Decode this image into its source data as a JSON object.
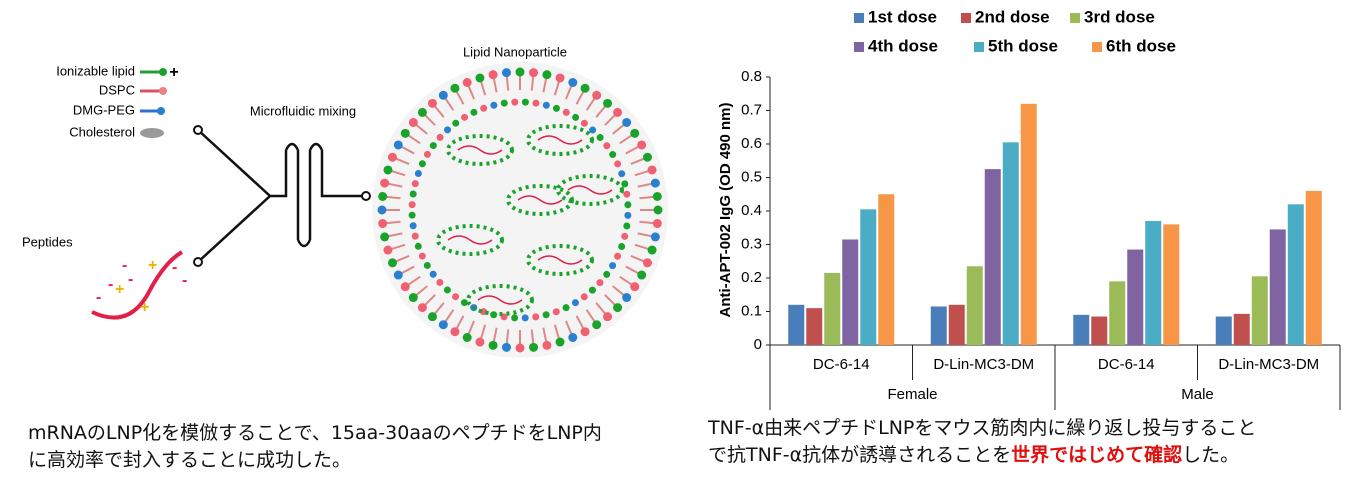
{
  "diagram": {
    "legend": [
      "Ionizable lipid",
      "DSPC",
      "DMG-PEG",
      "Cholesterol"
    ],
    "mixing_label": "Microfluidic mixing",
    "lnp_label": "Lipid Nanoparticle",
    "peptides_label": "Peptides",
    "plus": "+",
    "minus": "-"
  },
  "chart_data": {
    "type": "bar",
    "y_label": "Anti-APT-002  IgG (OD 490 nm)",
    "categories": [
      "DC-6-14",
      "D-Lin-MC3-DM",
      "DC-6-14",
      "D-Lin-MC3-DM"
    ],
    "group_labels": [
      "Female",
      "Male"
    ],
    "series": [
      {
        "name": "1st dose",
        "color": "#4a7ebb",
        "values": [
          0.12,
          0.115,
          0.09,
          0.085
        ]
      },
      {
        "name": "2nd dose",
        "color": "#c0504d",
        "values": [
          0.11,
          0.12,
          0.085,
          0.093
        ]
      },
      {
        "name": "3rd dose",
        "color": "#9bbb59",
        "values": [
          0.215,
          0.235,
          0.19,
          0.205
        ]
      },
      {
        "name": "4th dose",
        "color": "#8064a2",
        "values": [
          0.315,
          0.525,
          0.285,
          0.345
        ]
      },
      {
        "name": "5th dose",
        "color": "#4bacc6",
        "values": [
          0.405,
          0.605,
          0.37,
          0.42
        ]
      },
      {
        "name": "6th dose",
        "color": "#f79646",
        "values": [
          0.45,
          0.72,
          0.36,
          0.46
        ]
      }
    ],
    "ylim": [
      0,
      0.8
    ],
    "yticks": [
      0,
      0.1,
      0.2,
      0.3,
      0.4,
      0.5,
      0.6,
      0.7,
      0.8
    ]
  },
  "captions": {
    "left": [
      "mRNAのLNP化を模倣することで、15aa-30aaのペプチドをLNP内",
      "に高効率で封入することに成功した。"
    ],
    "right": [
      "TNF-α由来ペプチドLNPをマウス筋肉内に繰り返し投与すること",
      "で抗TNF-α抗体が誘導されることを",
      "世界ではじめて確認",
      "した。"
    ]
  }
}
